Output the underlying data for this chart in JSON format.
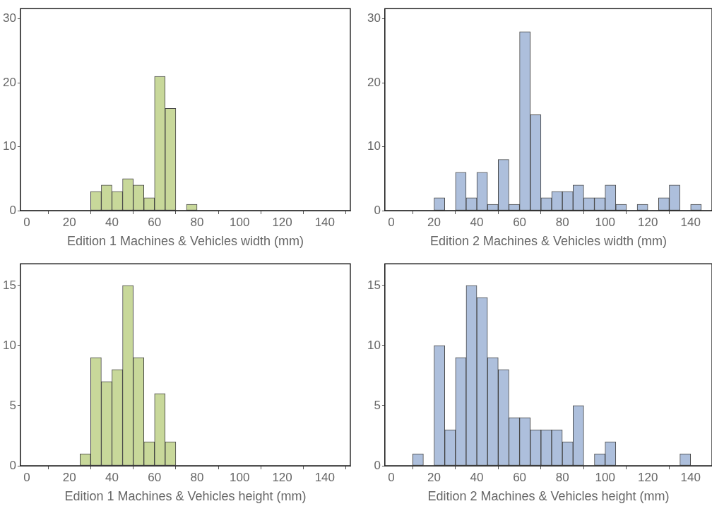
{
  "chart_data": [
    {
      "type": "histogram",
      "xlabel": "Edition 1 Machines & Vehicles width (mm)",
      "color": "#c8d89a",
      "bins": [
        30,
        35,
        40,
        45,
        50,
        55,
        60,
        65,
        70,
        75,
        80
      ],
      "values": [
        3,
        4,
        3,
        5,
        4,
        2,
        21,
        16,
        0,
        1
      ],
      "xlim": [
        -3,
        152
      ],
      "xticks": [
        0,
        20,
        40,
        60,
        80,
        100,
        120,
        140
      ],
      "ylim": [
        0,
        31.6
      ],
      "yticks": [
        0,
        10,
        20,
        30
      ],
      "grid": false
    },
    {
      "type": "histogram",
      "xlabel": "Edition 2 Machines & Vehicles width (mm)",
      "color": "#adbfdc",
      "bins": [
        20,
        25,
        30,
        35,
        40,
        45,
        50,
        55,
        60,
        65,
        70,
        75,
        80,
        85,
        90,
        95,
        100,
        105,
        110,
        115,
        120,
        125,
        130,
        135,
        140,
        145
      ],
      "values": [
        2,
        0,
        6,
        2,
        6,
        1,
        8,
        1,
        28,
        15,
        2,
        3,
        3,
        4,
        2,
        2,
        4,
        1,
        0,
        1,
        0,
        2,
        4,
        0,
        1
      ],
      "xlim": [
        -3,
        150
      ],
      "xticks": [
        0,
        20,
        40,
        60,
        80,
        100,
        120,
        140
      ],
      "ylim": [
        0,
        31.6
      ],
      "yticks": [
        0,
        10,
        20,
        30
      ],
      "grid": false
    },
    {
      "type": "histogram",
      "xlabel": "Edition 1 Machines & Vehicles height (mm)",
      "color": "#c8d89a",
      "bins": [
        25,
        30,
        35,
        40,
        45,
        50,
        55,
        60,
        65,
        70
      ],
      "values": [
        1,
        9,
        7,
        8,
        15,
        9,
        2,
        6,
        2
      ],
      "xlim": [
        -3,
        152
      ],
      "xticks": [
        0,
        20,
        40,
        60,
        80,
        100,
        120,
        140
      ],
      "ylim": [
        0,
        16.8
      ],
      "yticks": [
        0,
        5,
        10,
        15
      ],
      "grid": false
    },
    {
      "type": "histogram",
      "xlabel": "Edition 2 Machines & Vehicles height (mm)",
      "color": "#adbfdc",
      "bins": [
        10,
        15,
        20,
        25,
        30,
        35,
        40,
        45,
        50,
        55,
        60,
        65,
        70,
        75,
        80,
        85,
        90,
        95,
        100,
        105,
        110,
        115,
        120,
        125,
        130,
        135,
        140
      ],
      "values": [
        1,
        0,
        10,
        3,
        9,
        15,
        14,
        9,
        8,
        4,
        4,
        3,
        3,
        3,
        2,
        5,
        0,
        1,
        2,
        0,
        0,
        0,
        0,
        0,
        0,
        1
      ],
      "xlim": [
        -3,
        150
      ],
      "xticks": [
        0,
        20,
        40,
        60,
        80,
        100,
        120,
        140
      ],
      "ylim": [
        0,
        16.8
      ],
      "yticks": [
        0,
        5,
        10,
        15
      ],
      "grid": false
    }
  ]
}
